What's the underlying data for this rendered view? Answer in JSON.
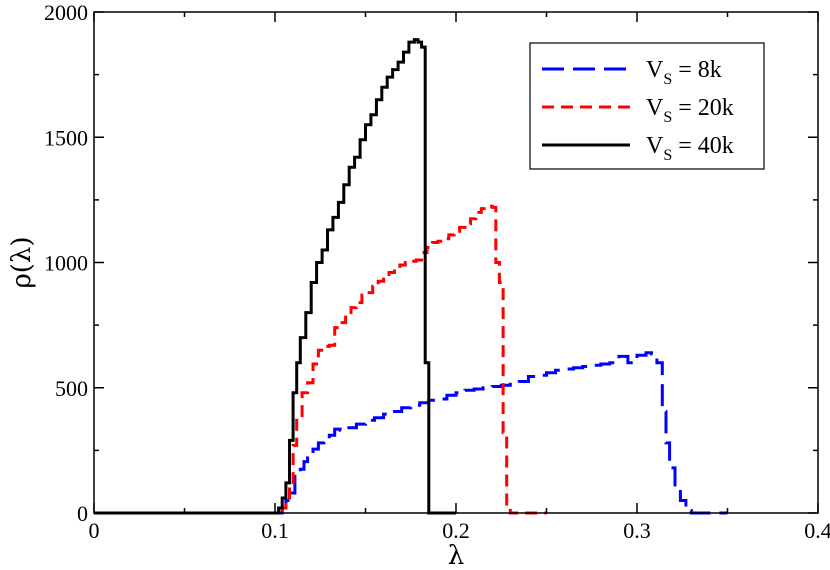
{
  "chart_data": {
    "type": "line",
    "title": "",
    "xlabel": "λ",
    "ylabel": "ρ(λ)",
    "xlim": [
      0,
      0.4
    ],
    "ylim": [
      0,
      2000
    ],
    "x_ticks": [
      0,
      0.1,
      0.2,
      0.3,
      0.4
    ],
    "x_tick_labels": [
      "0",
      "0.1",
      "0.2",
      "0.3",
      "0.4"
    ],
    "y_ticks": [
      0,
      500,
      1000,
      1500,
      2000
    ],
    "y_tick_labels": [
      "0",
      "500",
      "1000",
      "1500",
      "2000"
    ],
    "grid": false,
    "legend_position": "top-right",
    "series": [
      {
        "name": "V",
        "name_sub": "S",
        "name_suffix": " = 8k",
        "color": "#0000ff",
        "dash": "long-dash",
        "x": [
          0,
          0.1,
          0.104,
          0.106,
          0.108,
          0.111,
          0.114,
          0.116,
          0.118,
          0.121,
          0.124,
          0.127,
          0.13,
          0.133,
          0.136,
          0.14,
          0.145,
          0.15,
          0.155,
          0.16,
          0.165,
          0.17,
          0.175,
          0.18,
          0.185,
          0.19,
          0.195,
          0.2,
          0.205,
          0.21,
          0.215,
          0.22,
          0.225,
          0.23,
          0.235,
          0.24,
          0.245,
          0.25,
          0.255,
          0.26,
          0.265,
          0.27,
          0.275,
          0.28,
          0.285,
          0.29,
          0.295,
          0.3,
          0.305,
          0.308,
          0.311,
          0.314,
          0.316,
          0.318,
          0.321,
          0.324,
          0.327,
          0.33,
          0.35
        ],
        "y": [
          0,
          0,
          20,
          50,
          80,
          165,
          175,
          205,
          220,
          255,
          280,
          295,
          310,
          335,
          330,
          340,
          355,
          370,
          380,
          395,
          405,
          420,
          430,
          440,
          450,
          455,
          470,
          480,
          490,
          495,
          500,
          505,
          510,
          520,
          525,
          545,
          550,
          560,
          570,
          575,
          580,
          585,
          590,
          595,
          600,
          625,
          600,
          630,
          640,
          635,
          600,
          405,
          280,
          180,
          105,
          50,
          10,
          0,
          0
        ]
      },
      {
        "name": "V",
        "name_sub": "S",
        "name_suffix": " = 20k",
        "color": "#ff0000",
        "dash": "short-dash",
        "x": [
          0,
          0.1,
          0.104,
          0.106,
          0.108,
          0.11,
          0.112,
          0.115,
          0.118,
          0.121,
          0.124,
          0.127,
          0.13,
          0.133,
          0.136,
          0.139,
          0.142,
          0.145,
          0.148,
          0.151,
          0.154,
          0.157,
          0.16,
          0.163,
          0.166,
          0.169,
          0.172,
          0.175,
          0.178,
          0.181,
          0.184,
          0.187,
          0.19,
          0.193,
          0.196,
          0.199,
          0.202,
          0.205,
          0.208,
          0.211,
          0.214,
          0.217,
          0.22,
          0.222,
          0.224,
          0.226,
          0.228,
          0.23,
          0.25
        ],
        "y": [
          0,
          0,
          20,
          60,
          110,
          270,
          370,
          480,
          520,
          595,
          650,
          665,
          670,
          740,
          760,
          800,
          820,
          840,
          870,
          880,
          905,
          925,
          940,
          960,
          975,
          990,
          1000,
          1005,
          1010,
          1040,
          1060,
          1080,
          1085,
          1095,
          1110,
          1125,
          1140,
          1155,
          1175,
          1200,
          1215,
          1225,
          1220,
          1000,
          920,
          320,
          20,
          0,
          0
        ]
      },
      {
        "name": "V",
        "name_sub": "S",
        "name_suffix": " = 40k",
        "color": "#000000",
        "dash": "solid",
        "x": [
          0,
          0.1,
          0.102,
          0.104,
          0.106,
          0.108,
          0.11,
          0.112,
          0.114,
          0.117,
          0.12,
          0.123,
          0.126,
          0.129,
          0.132,
          0.135,
          0.138,
          0.141,
          0.144,
          0.147,
          0.15,
          0.153,
          0.156,
          0.159,
          0.162,
          0.165,
          0.168,
          0.171,
          0.174,
          0.177,
          0.179,
          0.181,
          0.183,
          0.185,
          0.187,
          0.2
        ],
        "y": [
          0,
          0,
          20,
          60,
          120,
          290,
          480,
          600,
          700,
          800,
          920,
          1000,
          1050,
          1130,
          1180,
          1240,
          1310,
          1380,
          1420,
          1490,
          1550,
          1590,
          1650,
          1700,
          1740,
          1770,
          1800,
          1840,
          1880,
          1890,
          1880,
          1860,
          600,
          0,
          0,
          0
        ]
      }
    ]
  }
}
